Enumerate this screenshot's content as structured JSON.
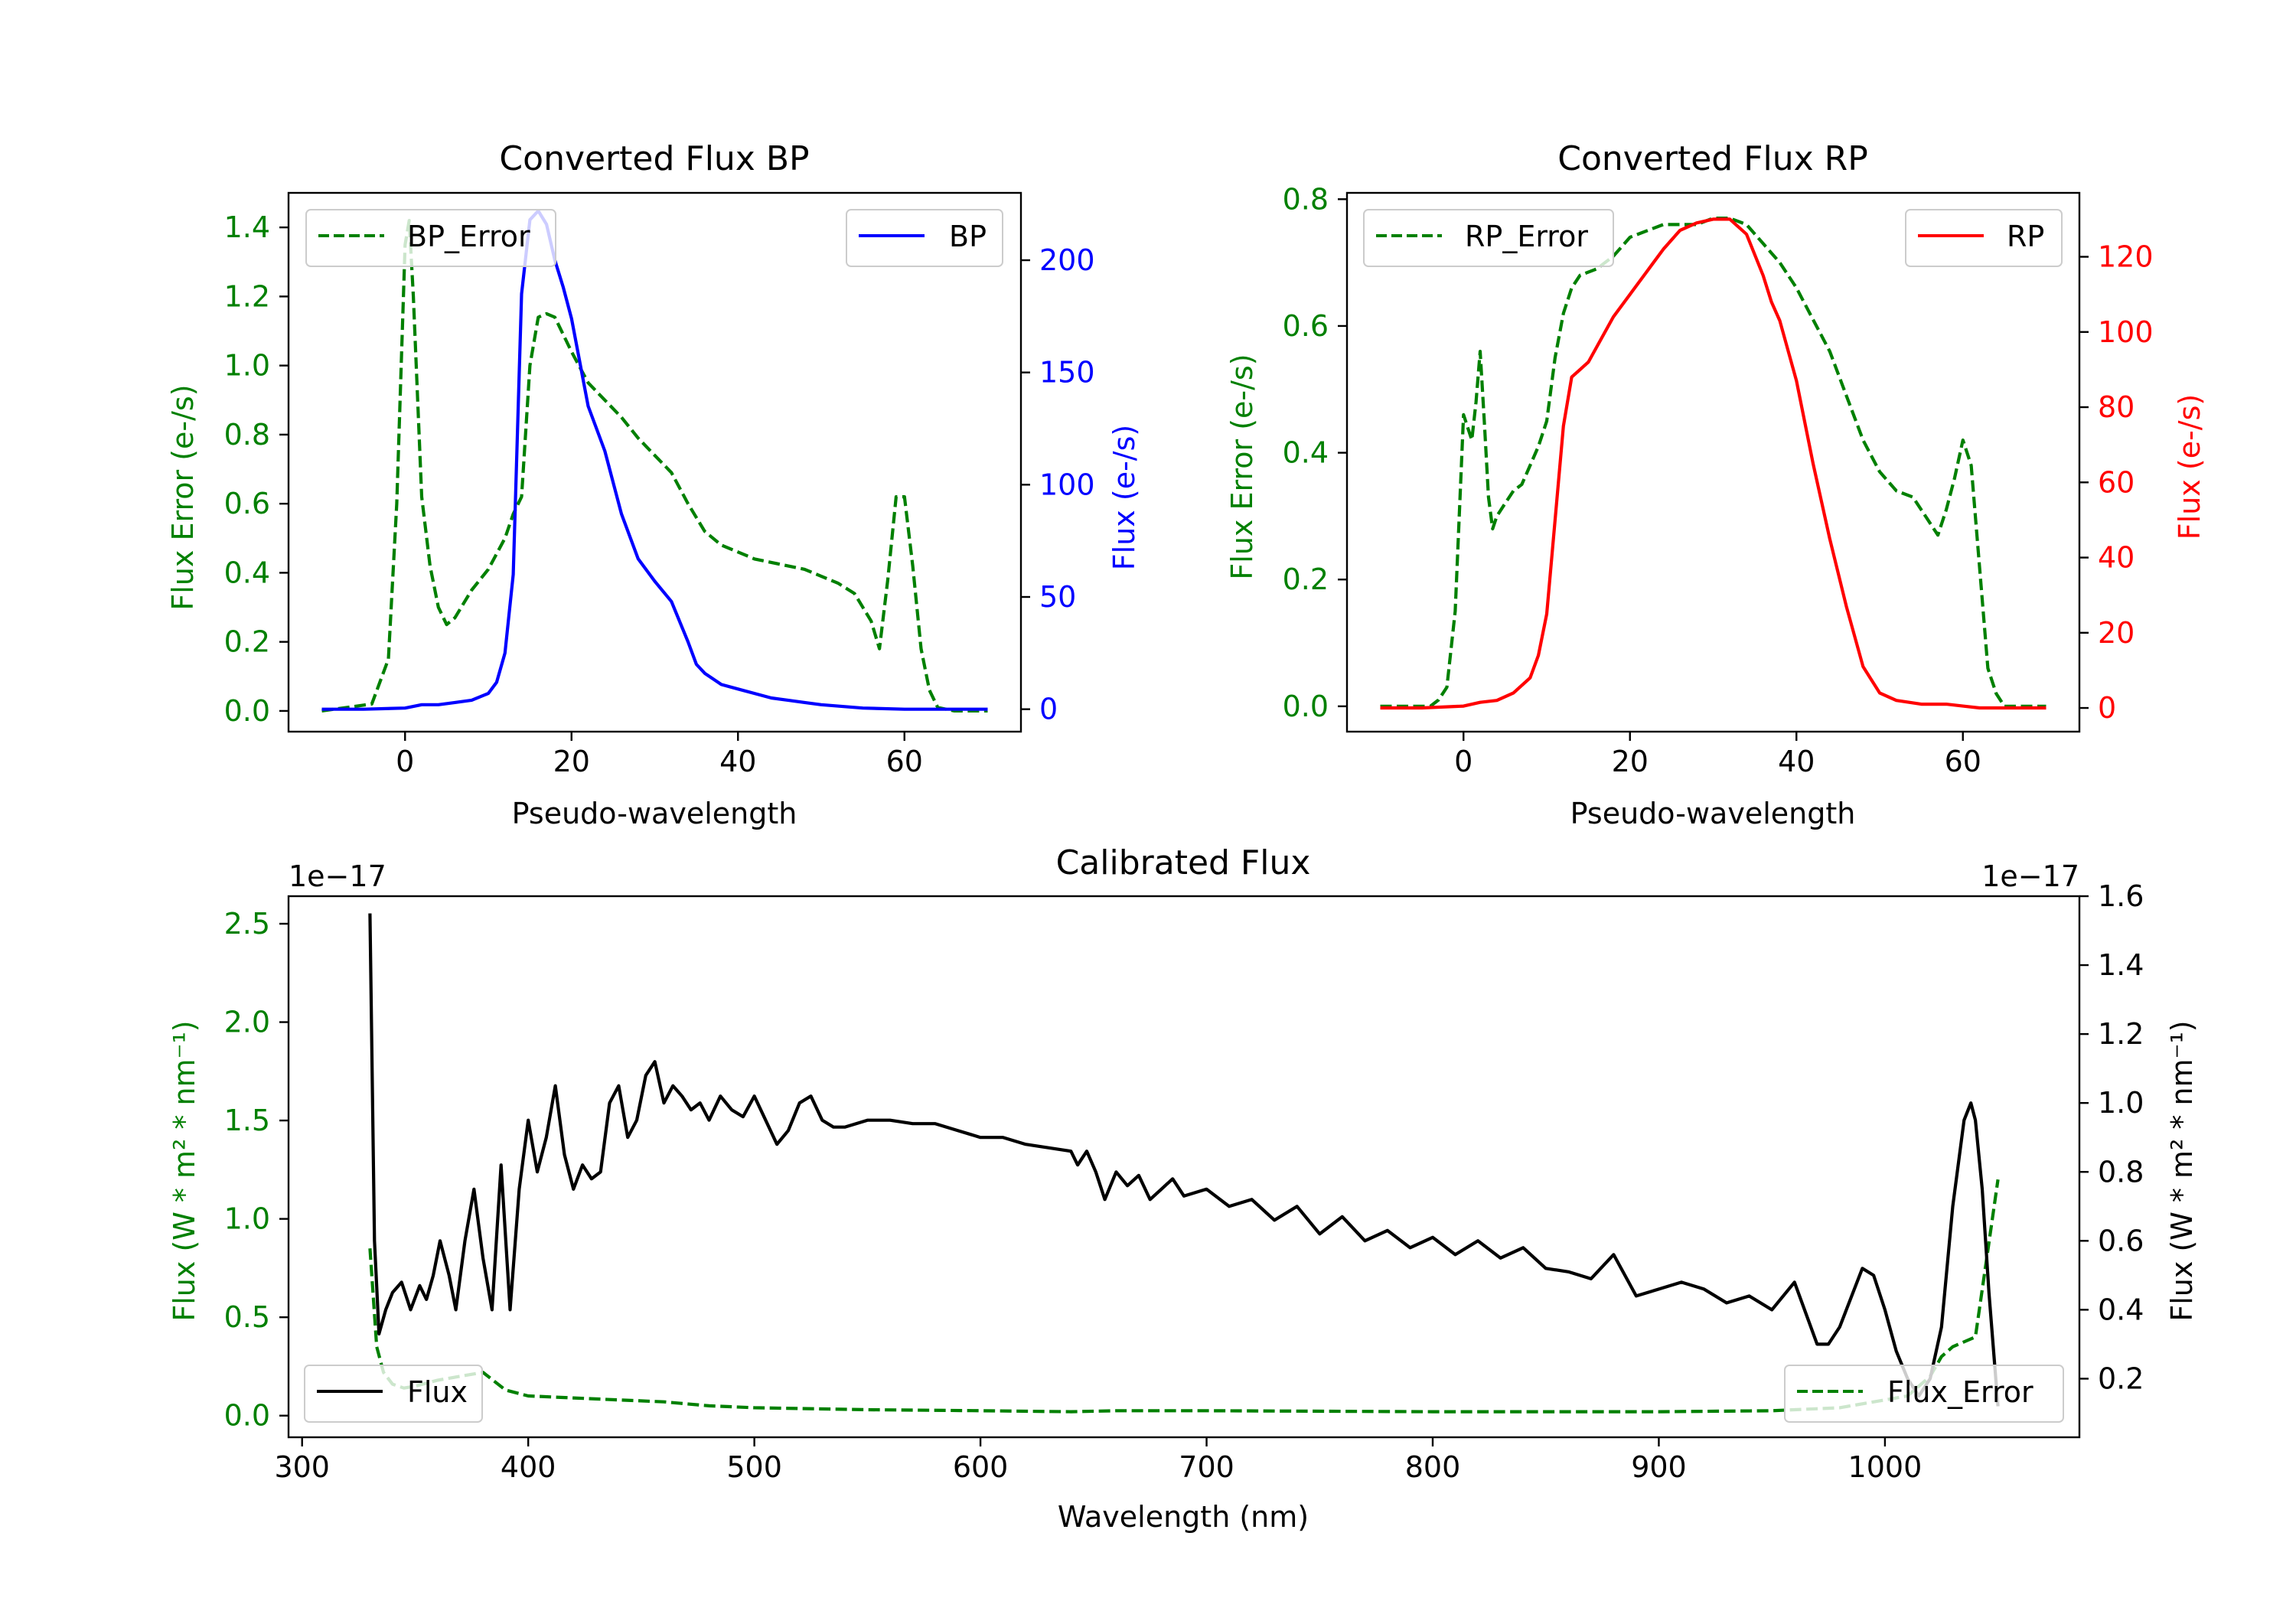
{
  "colors": {
    "bp": "#0000ff",
    "rp": "#ff0000",
    "error": "#008000",
    "flux": "#000000",
    "axis": "#000000"
  },
  "chart_data": [
    {
      "id": "bp",
      "type": "line",
      "title": "Converted Flux BP",
      "xlabel": "Pseudo-wavelength",
      "ylabel_left": "Flux Error (e-/s)",
      "ylabel_right": "Flux (e-/s)",
      "xlim": [
        -14,
        74
      ],
      "ylim_left": [
        -0.06,
        1.5
      ],
      "ylim_right": [
        -10,
        230
      ],
      "xticks": [
        0,
        20,
        40,
        60
      ],
      "yticks_left": [
        0.0,
        0.2,
        0.4,
        0.6,
        0.8,
        1.0,
        1.2,
        1.4
      ],
      "yticks_right": [
        0,
        50,
        100,
        150,
        200
      ],
      "legend_left": "top-left",
      "legend_right": "top-right",
      "series": [
        {
          "name": "BP_Error",
          "axis": "left",
          "style": "dashed",
          "color": "#008000",
          "x": [
            -10,
            -4,
            -2,
            -1,
            0,
            0.5,
            1,
            2,
            3,
            4,
            5,
            6,
            8,
            10,
            12,
            13,
            14,
            15,
            16,
            17,
            18,
            20,
            22,
            24,
            26,
            28,
            30,
            32,
            34,
            36,
            38,
            40,
            42,
            44,
            46,
            48,
            50,
            52,
            54,
            56,
            57,
            58,
            59,
            60,
            61,
            62,
            63,
            64,
            66,
            70
          ],
          "values": [
            0,
            0.02,
            0.15,
            0.6,
            1.35,
            1.42,
            1.2,
            0.62,
            0.42,
            0.3,
            0.25,
            0.27,
            0.35,
            0.41,
            0.5,
            0.57,
            0.62,
            1.0,
            1.14,
            1.15,
            1.14,
            1.04,
            0.95,
            0.9,
            0.85,
            0.79,
            0.74,
            0.69,
            0.6,
            0.52,
            0.48,
            0.46,
            0.44,
            0.43,
            0.42,
            0.41,
            0.39,
            0.37,
            0.34,
            0.26,
            0.18,
            0.38,
            0.62,
            0.62,
            0.42,
            0.18,
            0.06,
            0.01,
            0,
            0
          ]
        },
        {
          "name": "BP",
          "axis": "right",
          "style": "solid",
          "color": "#0000ff",
          "x": [
            -10,
            -5,
            0,
            2,
            4,
            6,
            8,
            10,
            11,
            12,
            13,
            14,
            15,
            16,
            17,
            18,
            19,
            20,
            22,
            24,
            26,
            28,
            30,
            32,
            34,
            35,
            36,
            38,
            40,
            42,
            44,
            46,
            48,
            50,
            55,
            60,
            65,
            70
          ],
          "values": [
            0,
            0,
            0.5,
            2,
            2,
            3,
            4,
            7,
            12,
            25,
            60,
            185,
            218,
            222,
            216,
            200,
            188,
            174,
            135,
            115,
            87,
            67,
            57,
            48,
            30,
            20,
            16,
            11,
            9,
            7,
            5,
            4,
            3,
            2,
            0.5,
            0,
            0,
            0
          ]
        }
      ]
    },
    {
      "id": "rp",
      "type": "line",
      "title": "Converted Flux RP",
      "xlabel": "Pseudo-wavelength",
      "ylabel_left": "Flux Error (e-/s)",
      "ylabel_right": "Flux (e-/s)",
      "xlim": [
        -14,
        74
      ],
      "ylim_left": [
        -0.04,
        0.81
      ],
      "ylim_right": [
        -6.3,
        137
      ],
      "xticks": [
        0,
        20,
        40,
        60
      ],
      "yticks_left": [
        0.0,
        0.2,
        0.4,
        0.6,
        0.8
      ],
      "yticks_right": [
        0,
        20,
        40,
        60,
        80,
        100,
        120
      ],
      "legend_left": "top-left",
      "legend_right": "top-right",
      "series": [
        {
          "name": "RP_Error",
          "axis": "left",
          "style": "dashed",
          "color": "#008000",
          "x": [
            -10,
            -4,
            -3,
            -2,
            -1,
            0,
            1,
            1.5,
            2,
            2.5,
            3,
            3.5,
            4,
            5,
            6,
            7,
            8,
            9,
            10,
            11,
            12,
            13,
            14,
            16,
            18,
            20,
            22,
            24,
            26,
            28,
            30,
            32,
            34,
            36,
            38,
            40,
            42,
            44,
            46,
            48,
            50,
            52,
            54,
            55,
            56,
            57,
            58,
            59,
            60,
            61,
            62,
            63,
            64,
            65,
            70
          ],
          "values": [
            0,
            0,
            0.01,
            0.03,
            0.15,
            0.46,
            0.42,
            0.48,
            0.56,
            0.45,
            0.33,
            0.28,
            0.3,
            0.32,
            0.34,
            0.35,
            0.38,
            0.41,
            0.45,
            0.55,
            0.62,
            0.66,
            0.68,
            0.69,
            0.71,
            0.74,
            0.75,
            0.76,
            0.76,
            0.76,
            0.77,
            0.77,
            0.76,
            0.73,
            0.7,
            0.66,
            0.61,
            0.56,
            0.49,
            0.42,
            0.37,
            0.34,
            0.33,
            0.31,
            0.29,
            0.27,
            0.31,
            0.36,
            0.42,
            0.38,
            0.22,
            0.06,
            0.02,
            0,
            0
          ]
        },
        {
          "name": "RP",
          "axis": "right",
          "style": "solid",
          "color": "#ff0000",
          "x": [
            -10,
            -5,
            0,
            2,
            4,
            6,
            8,
            9,
            10,
            11,
            12,
            13,
            14,
            15,
            16,
            18,
            20,
            22,
            24,
            26,
            28,
            30,
            32,
            34,
            36,
            37,
            38,
            40,
            42,
            44,
            46,
            48,
            50,
            52,
            55,
            58,
            60,
            62,
            65,
            70
          ],
          "values": [
            0,
            0,
            0.5,
            1.5,
            2,
            4,
            8,
            14,
            25,
            50,
            75,
            88,
            90,
            92,
            96,
            104,
            110,
            116,
            122,
            127,
            129,
            130,
            130,
            126,
            115,
            108,
            103,
            87,
            65,
            45,
            27,
            11,
            4,
            2,
            1,
            1,
            0.5,
            0,
            0,
            0
          ]
        }
      ]
    },
    {
      "id": "calibrated",
      "type": "line",
      "title": "Calibrated Flux",
      "xlabel": "Wavelength (nm)",
      "ylabel_left": "Flux (W * m² * nm⁻¹)",
      "ylabel_right": "Flux (W * m² * nm⁻¹)",
      "offset_left": "1e−17",
      "offset_right": "1e−17",
      "xlim": [
        294,
        1086
      ],
      "ylim_left": [
        -0.11,
        2.64
      ],
      "ylim_right": [
        0.03,
        1.6
      ],
      "xticks": [
        300,
        400,
        500,
        600,
        700,
        800,
        900,
        1000
      ],
      "yticks_left": [
        0.0,
        0.5,
        1.0,
        1.5,
        2.0,
        2.5
      ],
      "yticks_right": [
        0.2,
        0.4,
        0.6,
        0.8,
        1.0,
        1.2,
        1.4,
        1.6
      ],
      "legend_left": "bottom-left",
      "legend_right": "bottom-right",
      "series": [
        {
          "name": "Flux_Error",
          "axis": "left",
          "style": "dashed",
          "color": "#008000",
          "x": [
            330,
            333,
            336,
            340,
            345,
            350,
            360,
            370,
            380,
            390,
            400,
            420,
            440,
            460,
            480,
            500,
            550,
            600,
            640,
            660,
            700,
            800,
            900,
            950,
            980,
            1000,
            1010,
            1020,
            1025,
            1030,
            1040,
            1045,
            1050
          ],
          "values": [
            0.85,
            0.35,
            0.22,
            0.16,
            0.14,
            0.15,
            0.18,
            0.2,
            0.22,
            0.13,
            0.1,
            0.09,
            0.08,
            0.07,
            0.05,
            0.04,
            0.03,
            0.025,
            0.02,
            0.025,
            0.025,
            0.02,
            0.02,
            0.025,
            0.04,
            0.08,
            0.1,
            0.2,
            0.3,
            0.35,
            0.4,
            0.8,
            1.2
          ]
        },
        {
          "name": "Flux",
          "axis": "right",
          "style": "solid",
          "color": "#000000",
          "x": [
            330,
            332,
            334,
            337,
            340,
            344,
            348,
            352,
            355,
            358,
            361,
            365,
            368,
            372,
            376,
            380,
            384,
            388,
            392,
            396,
            400,
            404,
            408,
            412,
            416,
            420,
            424,
            428,
            432,
            436,
            440,
            444,
            448,
            452,
            456,
            460,
            464,
            468,
            472,
            476,
            480,
            485,
            490,
            495,
            500,
            505,
            510,
            515,
            520,
            525,
            530,
            535,
            540,
            545,
            550,
            560,
            570,
            580,
            590,
            600,
            610,
            620,
            630,
            640,
            643,
            647,
            651,
            655,
            660,
            665,
            670,
            675,
            680,
            685,
            690,
            700,
            710,
            720,
            730,
            740,
            750,
            760,
            770,
            780,
            790,
            800,
            810,
            820,
            830,
            840,
            850,
            860,
            870,
            880,
            890,
            900,
            910,
            920,
            930,
            940,
            950,
            960,
            970,
            975,
            980,
            990,
            995,
            1000,
            1005,
            1010,
            1015,
            1020,
            1025,
            1030,
            1035,
            1038,
            1040,
            1043,
            1046,
            1050
          ],
          "values": [
            1.55,
            0.6,
            0.33,
            0.4,
            0.45,
            0.48,
            0.4,
            0.47,
            0.43,
            0.5,
            0.6,
            0.5,
            0.4,
            0.6,
            0.75,
            0.55,
            0.4,
            0.82,
            0.4,
            0.75,
            0.95,
            0.8,
            0.9,
            1.05,
            0.85,
            0.75,
            0.82,
            0.78,
            0.8,
            1.0,
            1.05,
            0.9,
            0.95,
            1.08,
            1.12,
            1.0,
            1.05,
            1.02,
            0.98,
            1.0,
            0.95,
            1.02,
            0.98,
            0.96,
            1.02,
            0.95,
            0.88,
            0.92,
            1.0,
            1.02,
            0.95,
            0.93,
            0.93,
            0.94,
            0.95,
            0.95,
            0.94,
            0.94,
            0.92,
            0.9,
            0.9,
            0.88,
            0.87,
            0.86,
            0.82,
            0.86,
            0.8,
            0.72,
            0.8,
            0.76,
            0.79,
            0.72,
            0.75,
            0.78,
            0.73,
            0.75,
            0.7,
            0.72,
            0.66,
            0.7,
            0.62,
            0.67,
            0.6,
            0.63,
            0.58,
            0.61,
            0.56,
            0.6,
            0.55,
            0.58,
            0.52,
            0.51,
            0.49,
            0.56,
            0.44,
            0.46,
            0.48,
            0.46,
            0.42,
            0.44,
            0.4,
            0.48,
            0.3,
            0.3,
            0.35,
            0.52,
            0.5,
            0.4,
            0.28,
            0.2,
            0.15,
            0.2,
            0.35,
            0.7,
            0.95,
            1.0,
            0.95,
            0.75,
            0.45,
            0.12
          ]
        }
      ]
    }
  ]
}
